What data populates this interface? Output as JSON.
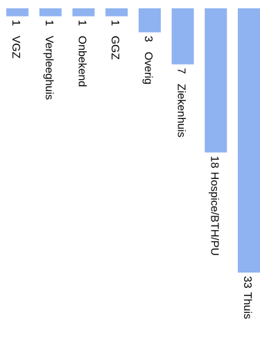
{
  "chart_data": {
    "type": "bar",
    "orientation": "horizontal, rotated 90 degrees clockwise",
    "categories": [
      "Thuis",
      "Hospice/BTH/PU",
      "Ziekenhuis",
      "Overig",
      "GGZ",
      "Onbekend",
      "Verpleeghuis",
      "VGZ"
    ],
    "values": [
      33,
      18,
      7,
      3,
      1,
      1,
      1,
      1
    ],
    "title": "",
    "xlabel": "",
    "ylabel": "",
    "grid": false,
    "legend": "none",
    "colors": {
      "bar": "#8fb3f0",
      "text": "#000000"
    }
  }
}
